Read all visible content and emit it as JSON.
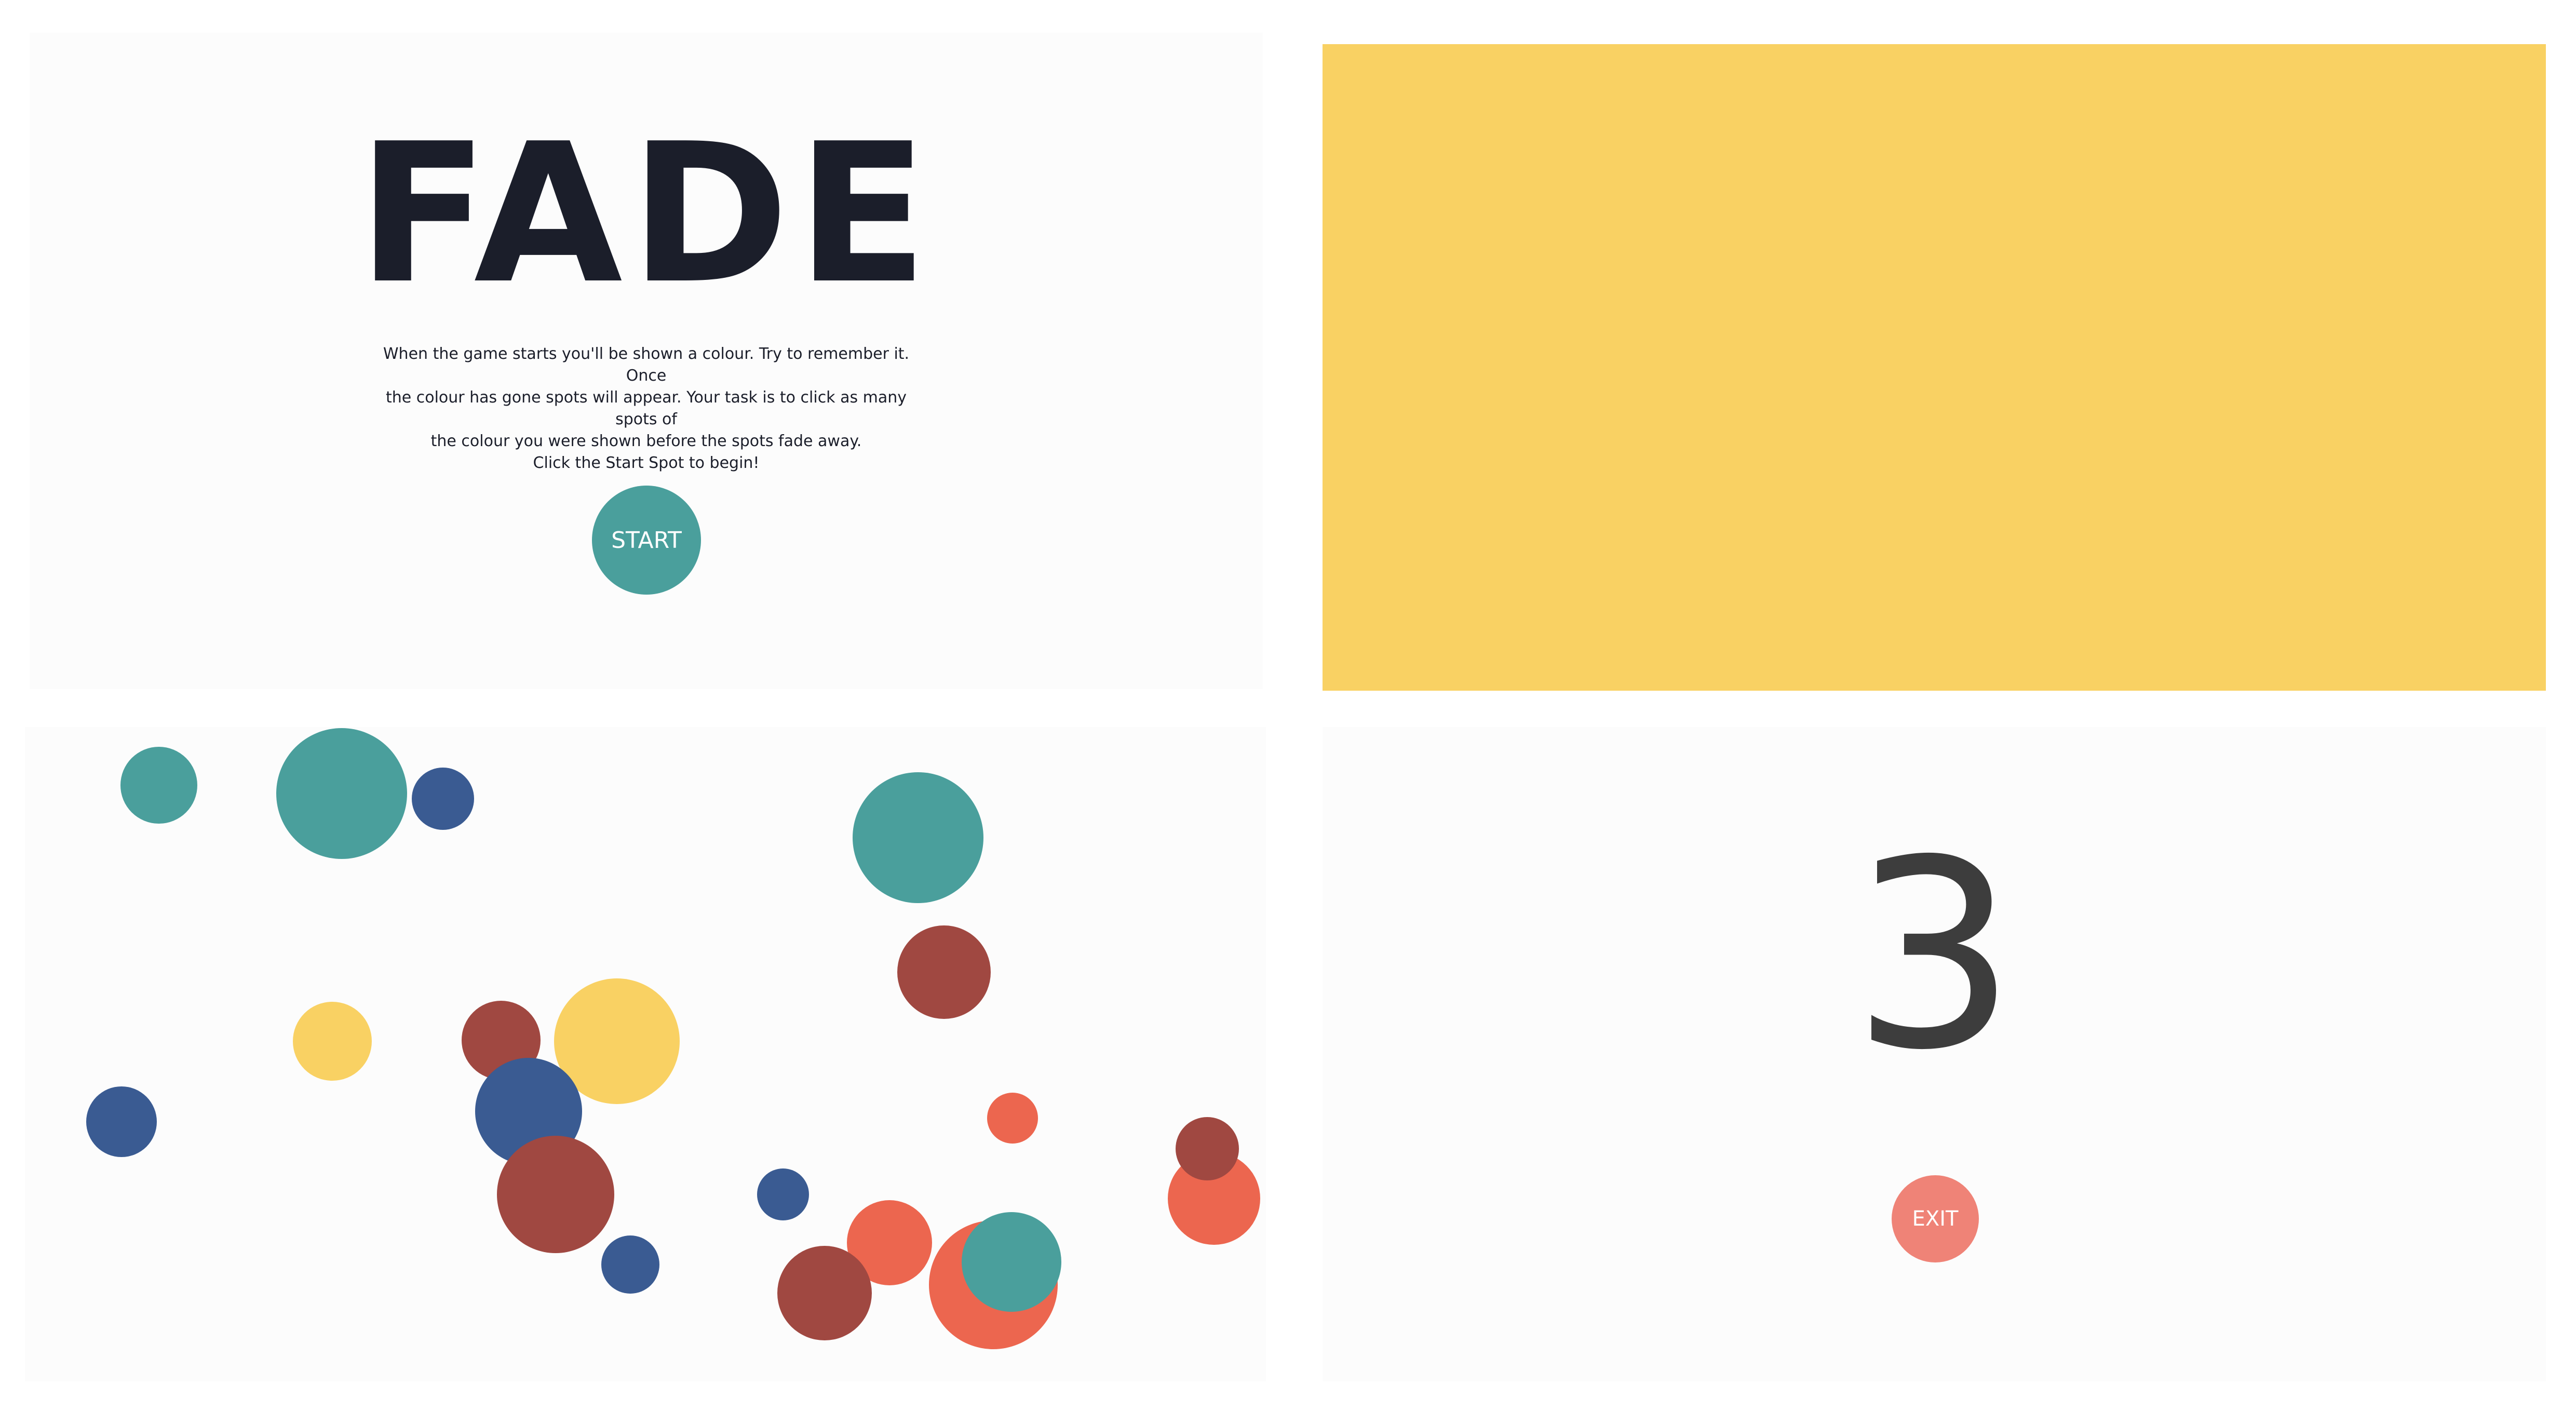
{
  "intro": {
    "title": "FADE",
    "instructions": [
      "When the game starts you'll be shown a colour. Try to remember it. Once",
      "the colour has gone spots will appear. Your task is to click as many spots of",
      "the colour you were shown before the spots fade away.",
      "Click the Start Spot to begin!"
    ],
    "start_label": "START"
  },
  "target_colour": "#f9d163",
  "palette": {
    "teal": "#4a9f9c",
    "navy": "#3a5b92",
    "brown": "#a04841",
    "yellow": "#f9d163",
    "coral": "#ec664f",
    "exit": "#ef8377"
  },
  "countdown": {
    "value": "3",
    "exit_label": "EXIT"
  }
}
